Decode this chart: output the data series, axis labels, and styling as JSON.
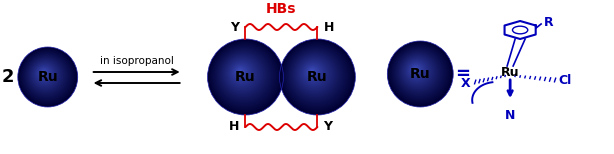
{
  "bg_color": "#ffffff",
  "ru_label": "Ru",
  "label_2": "2",
  "arrow_text": "in isopropanol",
  "hbs_label": "HBs",
  "sphere_face": "#3333cc",
  "sphere_highlight": "#aaaaff",
  "text_color_black": "#000000",
  "text_color_red": "#dd0000",
  "text_color_blue": "#0000bb",
  "wavy_color": "#dd0000",
  "equals_text": "=",
  "R_label": "R",
  "X_label": "X",
  "Cl_label": "Cl",
  "N_label": "N",
  "Ru_label2": "Ru",
  "figsize": [
    6.14,
    1.54
  ],
  "dpi": 100
}
